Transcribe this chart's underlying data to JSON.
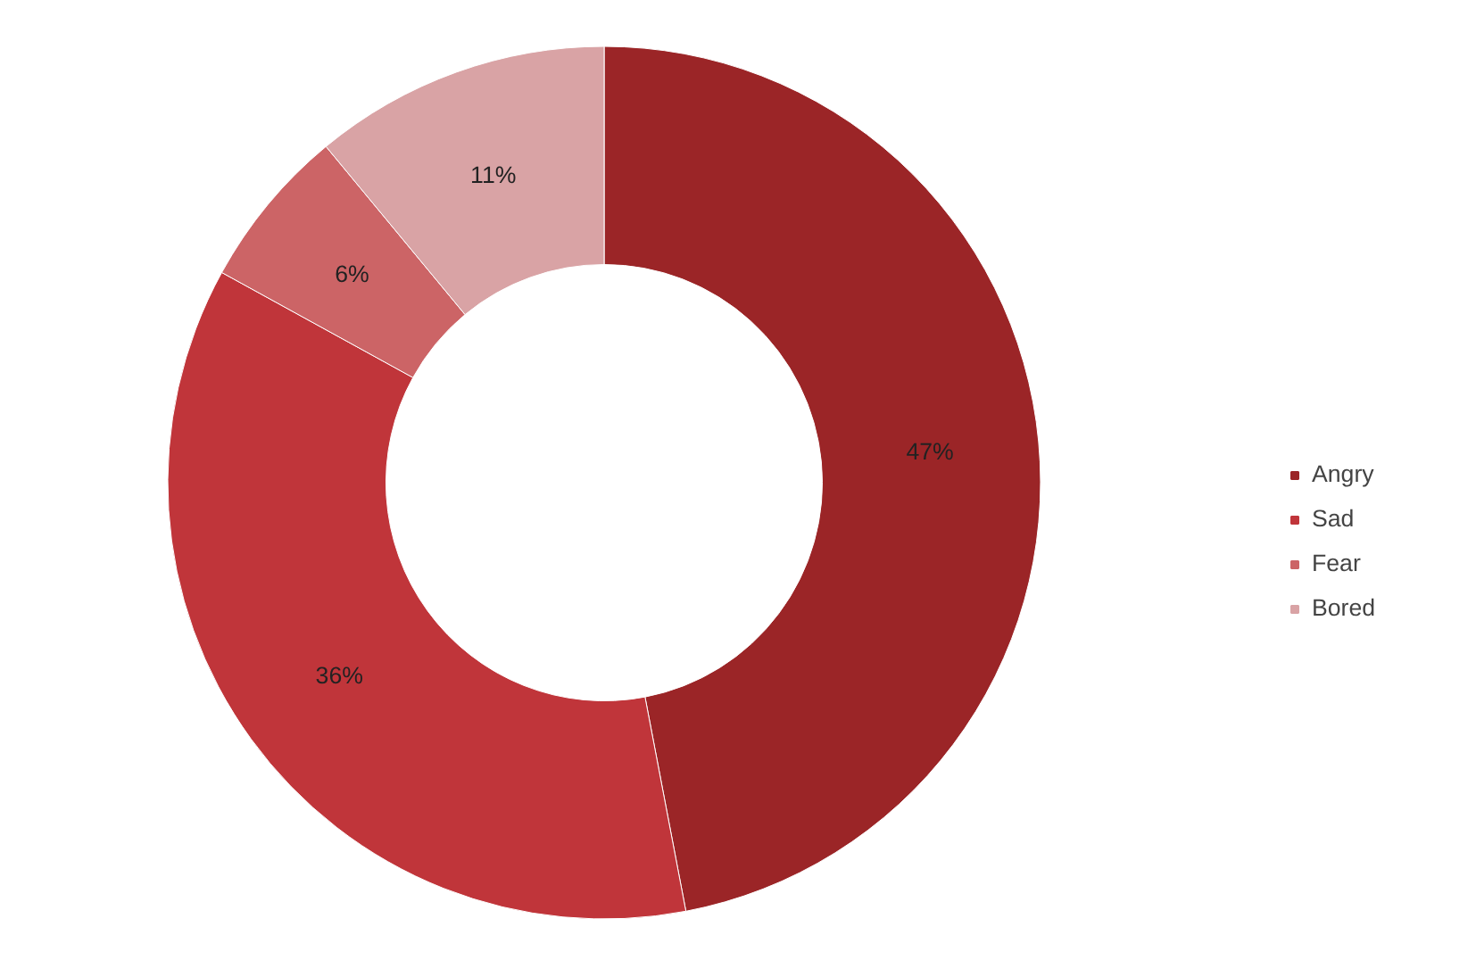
{
  "chart_data": {
    "type": "donut",
    "categories": [
      "Angry",
      "Sad",
      "Fear",
      "Bored"
    ],
    "values": [
      47,
      36,
      6,
      11
    ],
    "colors": [
      "#9b2527",
      "#c0353a",
      "#cc6466",
      "#d9a3a5"
    ],
    "value_labels": [
      "47%",
      "36%",
      "6%",
      "11%"
    ],
    "legend": "right"
  }
}
